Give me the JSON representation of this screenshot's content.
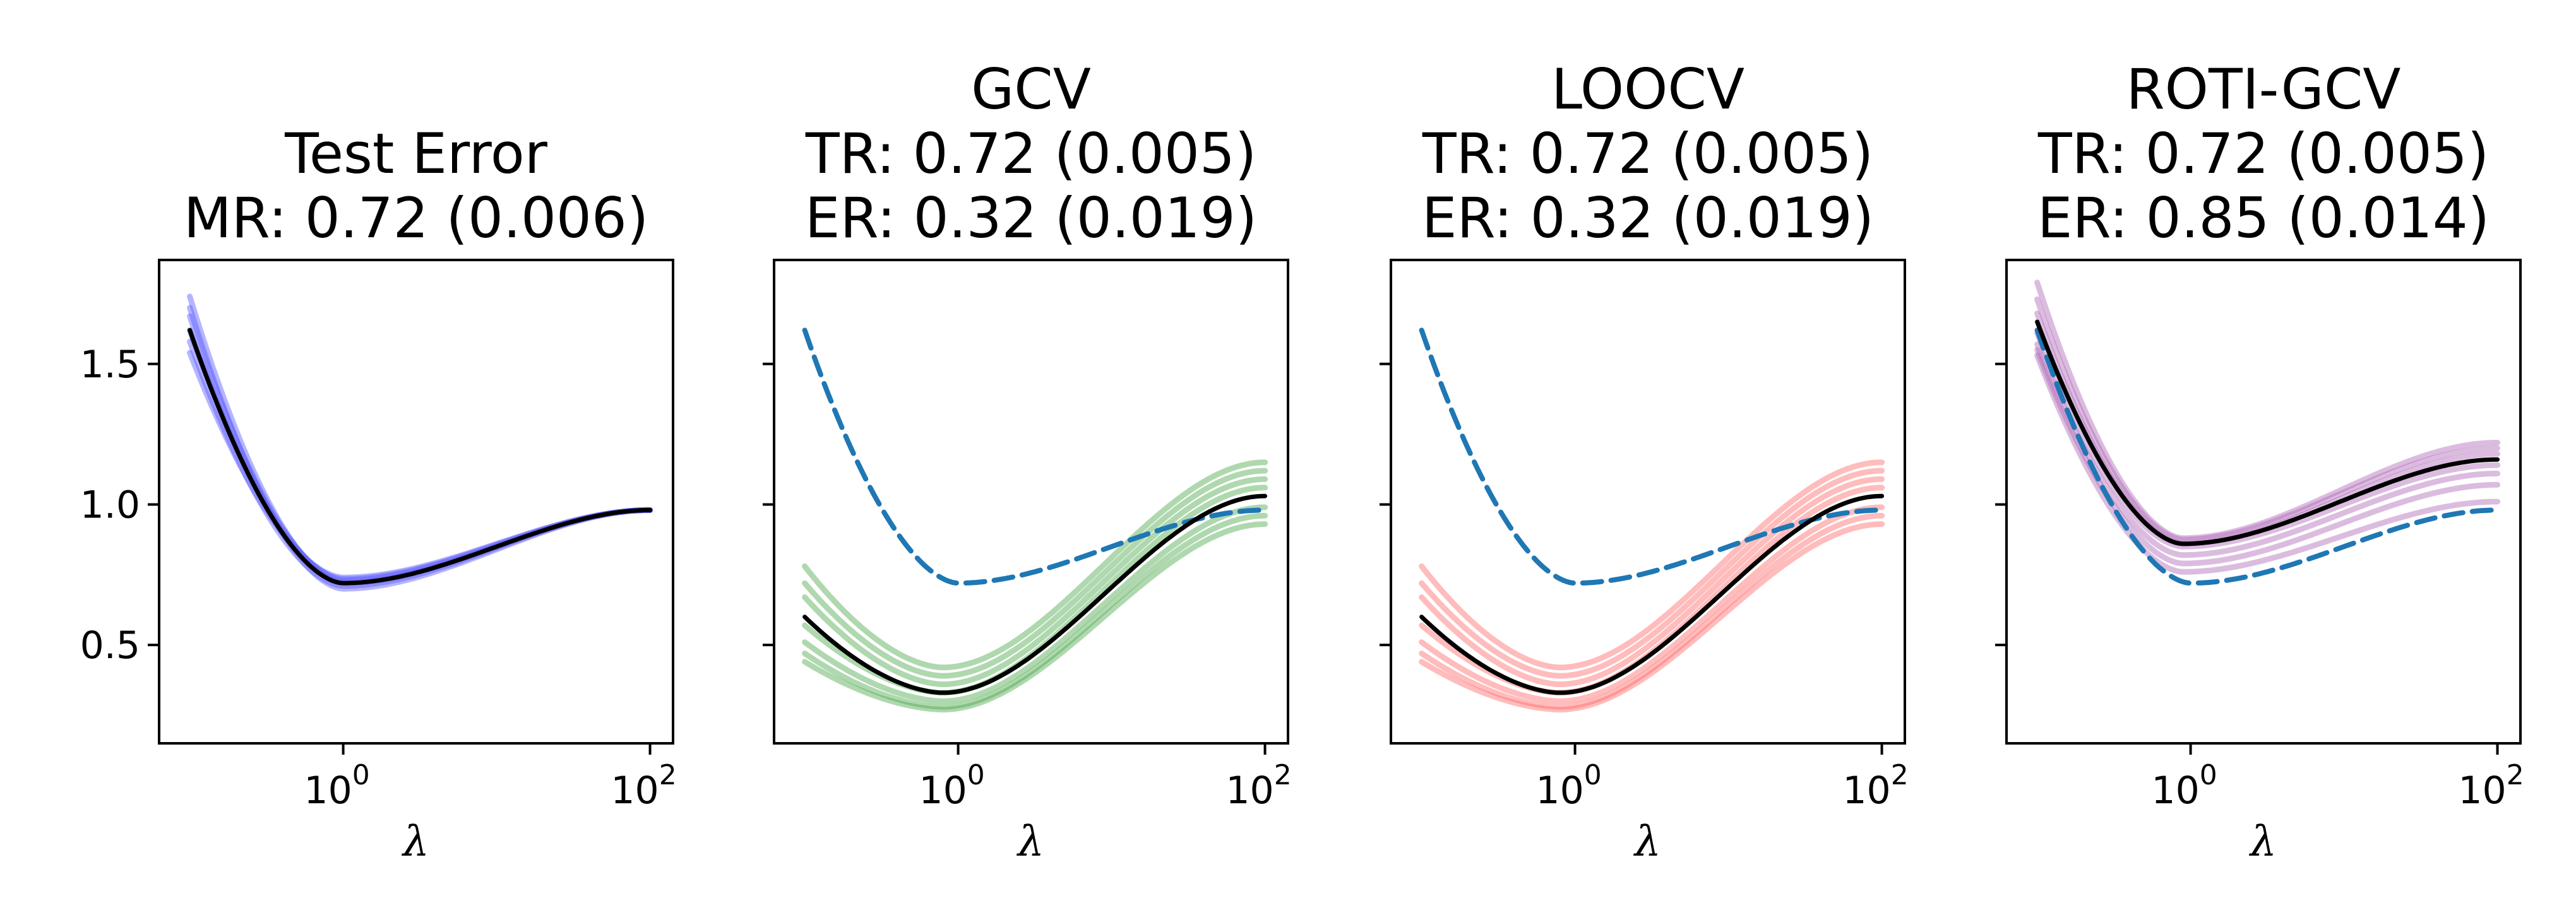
{
  "chart_data": [
    {
      "type": "line",
      "title_lines": [
        "Test Error",
        "MR: 0.72 (0.006)"
      ],
      "xlabel": "λ",
      "xscale": "log",
      "xlim_log10": [
        -1.2,
        2.15
      ],
      "ylim": [
        0.15,
        1.87
      ],
      "yticks": [
        0.5,
        1.0,
        1.5
      ],
      "ytick_labels": [
        "0.5",
        "1.0",
        "1.5"
      ],
      "show_ytick_labels": true,
      "xticks_log10": [
        0,
        2
      ],
      "xtick_base": "10",
      "xtick_exponents": [
        "0",
        "2"
      ],
      "model": {
        "lam_min_log10": -1.0,
        "lam_max_log10": 2.0,
        "start": 1.62,
        "valley_log10": 0.0,
        "valley": 0.72,
        "end": 0.98
      },
      "replicate_color": "#5b5bff",
      "replicates": [
        {
          "d_start": 0.12,
          "d_valley": 0.0,
          "d_end": 0.0
        },
        {
          "d_start": 0.05,
          "d_valley": 0.01,
          "d_end": 0.0
        },
        {
          "d_start": -0.04,
          "d_valley": -0.01,
          "d_end": 0.0
        },
        {
          "d_start": -0.08,
          "d_valley": 0.02,
          "d_end": 0.0
        },
        {
          "d_start": 0.08,
          "d_valley": -0.02,
          "d_end": 0.0
        },
        {
          "d_start": 0.0,
          "d_valley": 0.015,
          "d_end": 0.0
        }
      ],
      "mean_color": "#000000",
      "show_reference": false
    },
    {
      "type": "line",
      "title_lines": [
        "GCV",
        "TR: 0.72 (0.005)",
        "ER: 0.32 (0.019)"
      ],
      "xlabel": "λ",
      "xscale": "log",
      "xlim_log10": [
        -1.2,
        2.15
      ],
      "ylim": [
        0.15,
        1.87
      ],
      "yticks": [
        0.5,
        1.0,
        1.5
      ],
      "ytick_labels": [
        "0.5",
        "1.0",
        "1.5"
      ],
      "show_ytick_labels": false,
      "xticks_log10": [
        0,
        2
      ],
      "xtick_base": "10",
      "xtick_exponents": [
        "0",
        "2"
      ],
      "model": {
        "lam_min_log10": -1.0,
        "lam_max_log10": 2.0,
        "start": 0.6,
        "valley_log10": -0.1,
        "valley": 0.33,
        "end": 1.03
      },
      "replicate_color": "#4ea84e",
      "replicates": [
        {
          "d_start": 0.18,
          "d_valley": 0.09,
          "d_end": 0.12
        },
        {
          "d_start": 0.12,
          "d_valley": 0.06,
          "d_end": 0.09
        },
        {
          "d_start": 0.07,
          "d_valley": 0.03,
          "d_end": 0.06
        },
        {
          "d_start": -0.03,
          "d_valley": 0.0,
          "d_end": 0.03
        },
        {
          "d_start": -0.09,
          "d_valley": -0.03,
          "d_end": -0.04
        },
        {
          "d_start": -0.13,
          "d_valley": -0.05,
          "d_end": -0.07
        },
        {
          "d_start": -0.16,
          "d_valley": -0.06,
          "d_end": -0.1
        }
      ],
      "mean_color": "#000000",
      "show_reference": true,
      "reference_color": "#1f77b4"
    },
    {
      "type": "line",
      "title_lines": [
        "LOOCV",
        "TR: 0.72 (0.005)",
        "ER: 0.32 (0.019)"
      ],
      "xlabel": "λ",
      "xscale": "log",
      "xlim_log10": [
        -1.2,
        2.15
      ],
      "ylim": [
        0.15,
        1.87
      ],
      "yticks": [
        0.5,
        1.0,
        1.5
      ],
      "ytick_labels": [
        "0.5",
        "1.0",
        "1.5"
      ],
      "show_ytick_labels": false,
      "xticks_log10": [
        0,
        2
      ],
      "xtick_base": "10",
      "xtick_exponents": [
        "0",
        "2"
      ],
      "model": {
        "lam_min_log10": -1.0,
        "lam_max_log10": 2.0,
        "start": 0.6,
        "valley_log10": -0.1,
        "valley": 0.33,
        "end": 1.03
      },
      "replicate_color": "#ff6b6b",
      "replicates": [
        {
          "d_start": 0.18,
          "d_valley": 0.09,
          "d_end": 0.12
        },
        {
          "d_start": 0.12,
          "d_valley": 0.06,
          "d_end": 0.09
        },
        {
          "d_start": 0.07,
          "d_valley": 0.03,
          "d_end": 0.06
        },
        {
          "d_start": -0.03,
          "d_valley": 0.0,
          "d_end": 0.03
        },
        {
          "d_start": -0.09,
          "d_valley": -0.03,
          "d_end": -0.04
        },
        {
          "d_start": -0.13,
          "d_valley": -0.05,
          "d_end": -0.07
        },
        {
          "d_start": -0.16,
          "d_valley": -0.06,
          "d_end": -0.1
        }
      ],
      "mean_color": "#000000",
      "show_reference": true,
      "reference_color": "#1f77b4"
    },
    {
      "type": "line",
      "title_lines": [
        "ROTI-GCV",
        "TR: 0.72 (0.005)",
        "ER: 0.85 (0.014)"
      ],
      "xlabel": "λ",
      "xscale": "log",
      "xlim_log10": [
        -1.2,
        2.15
      ],
      "ylim": [
        0.15,
        1.87
      ],
      "yticks": [
        0.5,
        1.0,
        1.5
      ],
      "ytick_labels": [
        "0.5",
        "1.0",
        "1.5"
      ],
      "show_ytick_labels": false,
      "xticks_log10": [
        0,
        2
      ],
      "xtick_base": "10",
      "xtick_exponents": [
        "0",
        "2"
      ],
      "model": {
        "lam_min_log10": -1.0,
        "lam_max_log10": 2.0,
        "start": 1.65,
        "valley_log10": -0.05,
        "valley": 0.86,
        "end": 1.16
      },
      "replicate_color": "#b06ab8",
      "replicates": [
        {
          "d_start": 0.14,
          "d_valley": 0.02,
          "d_end": 0.06
        },
        {
          "d_start": 0.08,
          "d_valley": 0.015,
          "d_end": 0.04
        },
        {
          "d_start": 0.03,
          "d_valley": 0.0,
          "d_end": 0.02
        },
        {
          "d_start": -0.04,
          "d_valley": -0.01,
          "d_end": -0.02
        },
        {
          "d_start": -0.08,
          "d_valley": -0.04,
          "d_end": -0.05
        },
        {
          "d_start": -0.1,
          "d_valley": -0.07,
          "d_end": -0.09
        },
        {
          "d_start": -0.12,
          "d_valley": -0.1,
          "d_end": -0.15
        }
      ],
      "mean_color": "#000000",
      "show_reference": true,
      "reference_color": "#1f77b4"
    }
  ],
  "reference_curve": {
    "lam_min_log10": -1.0,
    "lam_max_log10": 2.0,
    "start": 1.62,
    "valley_log10": 0.0,
    "valley": 0.72,
    "end": 0.98
  }
}
